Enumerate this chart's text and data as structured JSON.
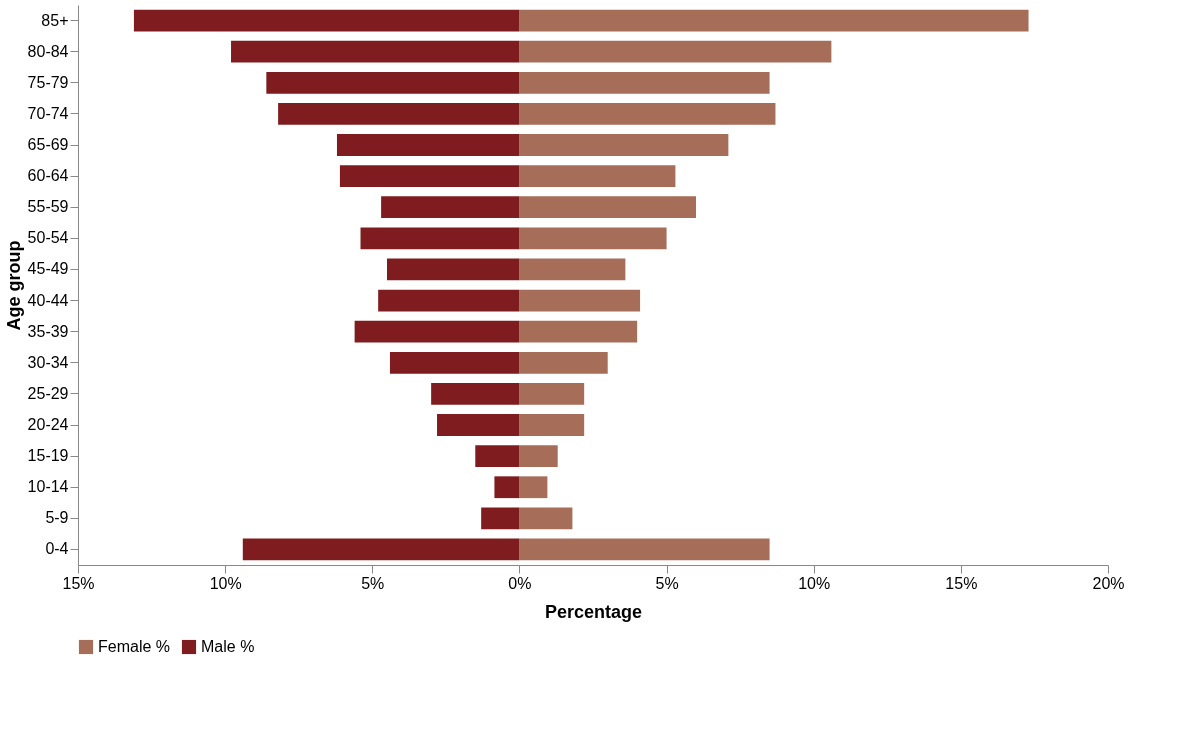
{
  "chart_data": {
    "type": "bar",
    "orientation": "horizontal",
    "xlabel": "Percentage",
    "ylabel": "Age group",
    "categories": [
      "85+",
      "80-84",
      "75-79",
      "70-74",
      "65-69",
      "60-64",
      "55-59",
      "50-54",
      "45-49",
      "40-44",
      "35-39",
      "30-34",
      "25-29",
      "20-24",
      "15-19",
      "10-14",
      "5-9",
      "0-4"
    ],
    "series": [
      {
        "name": "Female %",
        "color": "#a66d58",
        "values": [
          17.3,
          10.6,
          8.5,
          8.7,
          7.1,
          5.3,
          6.0,
          5.0,
          3.6,
          4.1,
          4.0,
          3.0,
          2.2,
          2.2,
          1.3,
          0.95,
          1.8,
          8.5
        ]
      },
      {
        "name": "Male %",
        "color": "#7f1c1f",
        "values": [
          -13.1,
          -9.8,
          -8.6,
          -8.2,
          -6.2,
          -6.1,
          -4.7,
          -5.4,
          -4.5,
          -4.8,
          -5.6,
          -4.4,
          -3.0,
          -2.8,
          -1.5,
          -0.85,
          -1.3,
          -9.4
        ]
      }
    ],
    "xlim": [
      -15,
      20
    ],
    "xticks": [
      {
        "value": -15,
        "label": "15%"
      },
      {
        "value": -10,
        "label": "10%"
      },
      {
        "value": -5,
        "label": "5%"
      },
      {
        "value": 0,
        "label": "0%"
      },
      {
        "value": 5,
        "label": "5%"
      },
      {
        "value": 10,
        "label": "10%"
      },
      {
        "value": 15,
        "label": "15%"
      },
      {
        "value": 20,
        "label": "20%"
      }
    ],
    "grid": false,
    "legend": "bottom",
    "stacked": true
  }
}
